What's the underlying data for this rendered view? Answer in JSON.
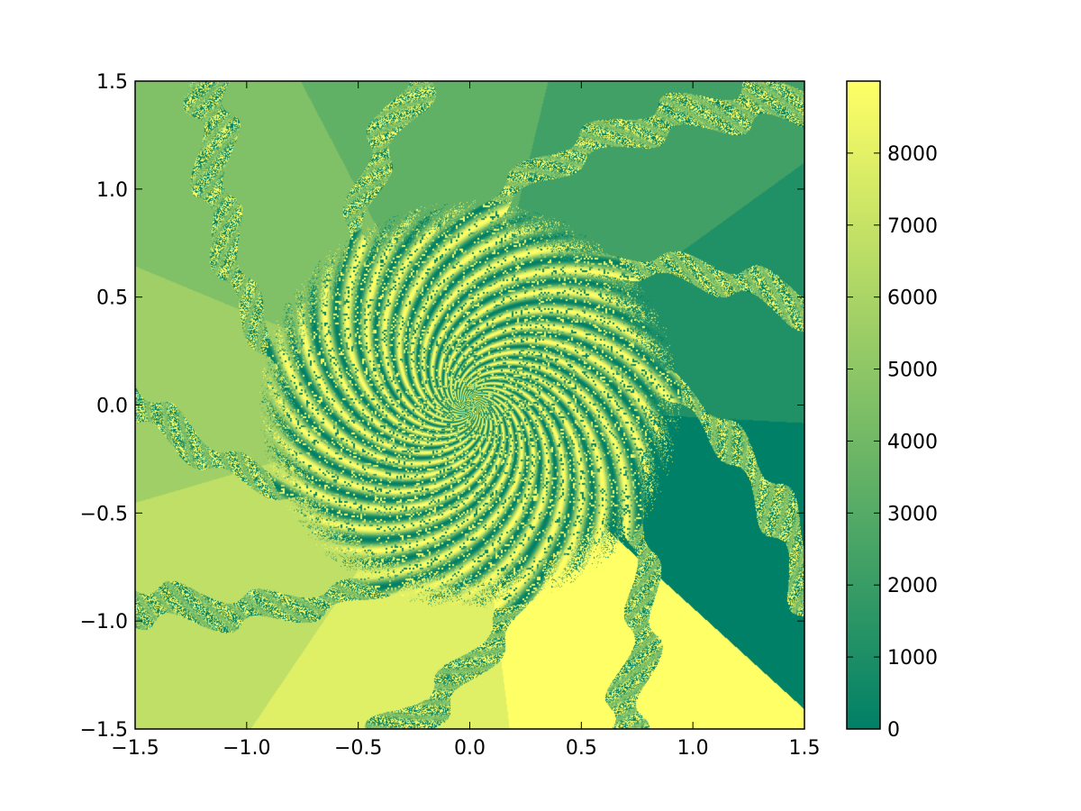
{
  "chart_data": {
    "type": "heatmap",
    "title": "",
    "xlabel": "",
    "ylabel": "",
    "xlim": [
      -1.5,
      1.5
    ],
    "ylim": [
      -1.5,
      1.5
    ],
    "x_ticks": [
      -1.5,
      -1.0,
      -0.5,
      0.0,
      0.5,
      1.0,
      1.5
    ],
    "x_tick_labels": [
      "−1.5",
      "−1.0",
      "−0.5",
      "0.0",
      "0.5",
      "1.0",
      "1.5"
    ],
    "y_ticks": [
      -1.5,
      -1.0,
      -0.5,
      0.0,
      0.5,
      1.0,
      1.5
    ],
    "y_tick_labels": [
      "−1.5",
      "−1.0",
      "−0.5",
      "0.0",
      "0.5",
      "1.0",
      "1.5"
    ],
    "colorbar": {
      "range": [
        0,
        9000
      ],
      "ticks": [
        0,
        1000,
        2000,
        3000,
        4000,
        5000,
        6000,
        7000,
        8000
      ],
      "tick_labels": [
        "0",
        "1000",
        "2000",
        "3000",
        "4000",
        "5000",
        "6000",
        "7000",
        "8000"
      ],
      "colormap": "summer",
      "color_low": "#008066",
      "color_high": "#ffff66"
    },
    "grid": false,
    "description_of_field": "9-armed spiral fractal basins; value increases with angle"
  }
}
